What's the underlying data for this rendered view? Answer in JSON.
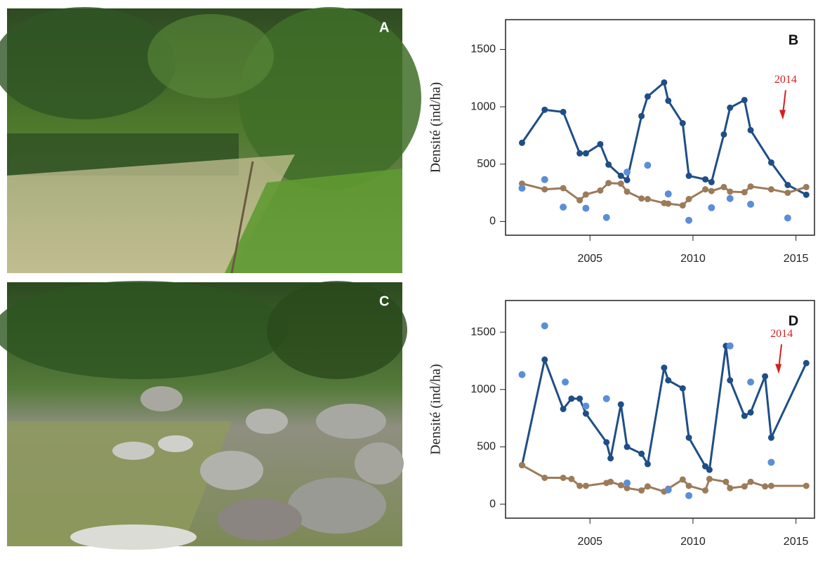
{
  "photo_labels": [
    "A",
    "C"
  ],
  "chart_data": [
    {
      "type": "line",
      "panel_label": "B",
      "y_label": "Densité (ind/ha)",
      "xlim": [
        2000.9,
        2015.9
      ],
      "xticks": [
        2005,
        2010,
        2015
      ],
      "ylim": [
        -120,
        1760
      ],
      "yticks": [
        0,
        500,
        1000,
        1500
      ],
      "annotations": [
        {
          "text": "2014",
          "x": 2014.5,
          "y": 1230,
          "color": "#d42020"
        }
      ],
      "series": [
        {
          "style": "line",
          "color": "#1f4e87",
          "x": [
            2001.7,
            2002.8,
            2003.7,
            2004.5,
            2004.8,
            2005.5,
            2005.9,
            2006.5,
            2006.8,
            2007.5,
            2007.8,
            2008.6,
            2008.8,
            2009.5,
            2009.8,
            2010.6,
            2010.9,
            2011.5,
            2011.8,
            2012.5,
            2012.8,
            2013.8,
            2014.6,
            2015.5
          ],
          "values": [
            686,
            974,
            955,
            594,
            594,
            674,
            496,
            398,
            361,
            919,
            1090,
            1212,
            1053,
            857,
            398,
            367,
            343,
            759,
            992,
            1059,
            796,
            514,
            318,
            233
          ]
        },
        {
          "style": "line",
          "color": "#9c7b5a",
          "x": [
            2001.7,
            2002.8,
            2003.7,
            2004.5,
            2004.8,
            2005.5,
            2005.9,
            2006.5,
            2006.8,
            2007.5,
            2007.8,
            2008.6,
            2008.8,
            2009.5,
            2009.8,
            2010.6,
            2010.9,
            2011.5,
            2011.8,
            2012.5,
            2012.8,
            2013.8,
            2014.6,
            2015.5
          ],
          "values": [
            330,
            280,
            290,
            185,
            235,
            270,
            335,
            330,
            260,
            200,
            195,
            160,
            155,
            140,
            195,
            280,
            265,
            300,
            260,
            255,
            305,
            280,
            250,
            300
          ]
        },
        {
          "style": "points",
          "color": "#5b8ed6",
          "x": [
            2001.7,
            2002.8,
            2003.7,
            2004.8,
            2005.8,
            2006.8,
            2007.8,
            2008.8,
            2009.8,
            2010.9,
            2011.8,
            2012.8,
            2014.6
          ],
          "values": [
            290,
            365,
            125,
            115,
            35,
            430,
            490,
            240,
            10,
            120,
            200,
            150,
            30
          ]
        }
      ]
    },
    {
      "type": "line",
      "panel_label": "D",
      "y_label": "Densité (ind/ha)",
      "xlim": [
        2000.9,
        2015.9
      ],
      "xticks": [
        2005,
        2010,
        2015
      ],
      "ylim": [
        -122,
        1776
      ],
      "yticks": [
        0,
        500,
        1000,
        1500
      ],
      "annotations": [
        {
          "text": "2014",
          "x": 2014.3,
          "y": 1480,
          "color": "#d42020"
        }
      ],
      "series": [
        {
          "style": "line",
          "color": "#1f4e87",
          "x": [
            2001.7,
            2002.8,
            2003.7,
            2004.1,
            2004.5,
            2004.8,
            2005.8,
            2006.0,
            2006.5,
            2006.8,
            2007.5,
            2007.8,
            2008.6,
            2008.8,
            2009.5,
            2009.8,
            2010.6,
            2010.8,
            2011.6,
            2011.8,
            2012.5,
            2012.8,
            2013.5,
            2013.8,
            2015.5
          ],
          "values": [
            340,
            1260,
            830,
            920,
            920,
            790,
            540,
            400,
            870,
            500,
            440,
            350,
            1190,
            1080,
            1010,
            580,
            330,
            300,
            1380,
            1080,
            770,
            800,
            1115,
            580,
            1230
          ]
        },
        {
          "style": "line",
          "color": "#9c7b5a",
          "x": [
            2001.7,
            2002.8,
            2003.7,
            2004.1,
            2004.5,
            2004.8,
            2005.8,
            2006.0,
            2006.5,
            2006.8,
            2007.5,
            2007.8,
            2008.6,
            2008.8,
            2009.5,
            2009.8,
            2010.6,
            2010.8,
            2011.6,
            2011.8,
            2012.5,
            2012.8,
            2013.5,
            2013.8,
            2015.5
          ],
          "values": [
            340,
            230,
            230,
            220,
            160,
            160,
            185,
            195,
            165,
            140,
            120,
            155,
            110,
            135,
            215,
            160,
            120,
            220,
            195,
            140,
            155,
            195,
            155,
            160,
            160
          ]
        },
        {
          "style": "points",
          "color": "#5b8ed6",
          "x": [
            2001.7,
            2002.8,
            2003.8,
            2004.8,
            2005.8,
            2006.8,
            2008.8,
            2009.8,
            2011.8,
            2012.8,
            2013.8
          ],
          "values": [
            1130,
            1555,
            1065,
            855,
            920,
            185,
            125,
            75,
            1380,
            1065,
            365
          ]
        }
      ]
    }
  ]
}
